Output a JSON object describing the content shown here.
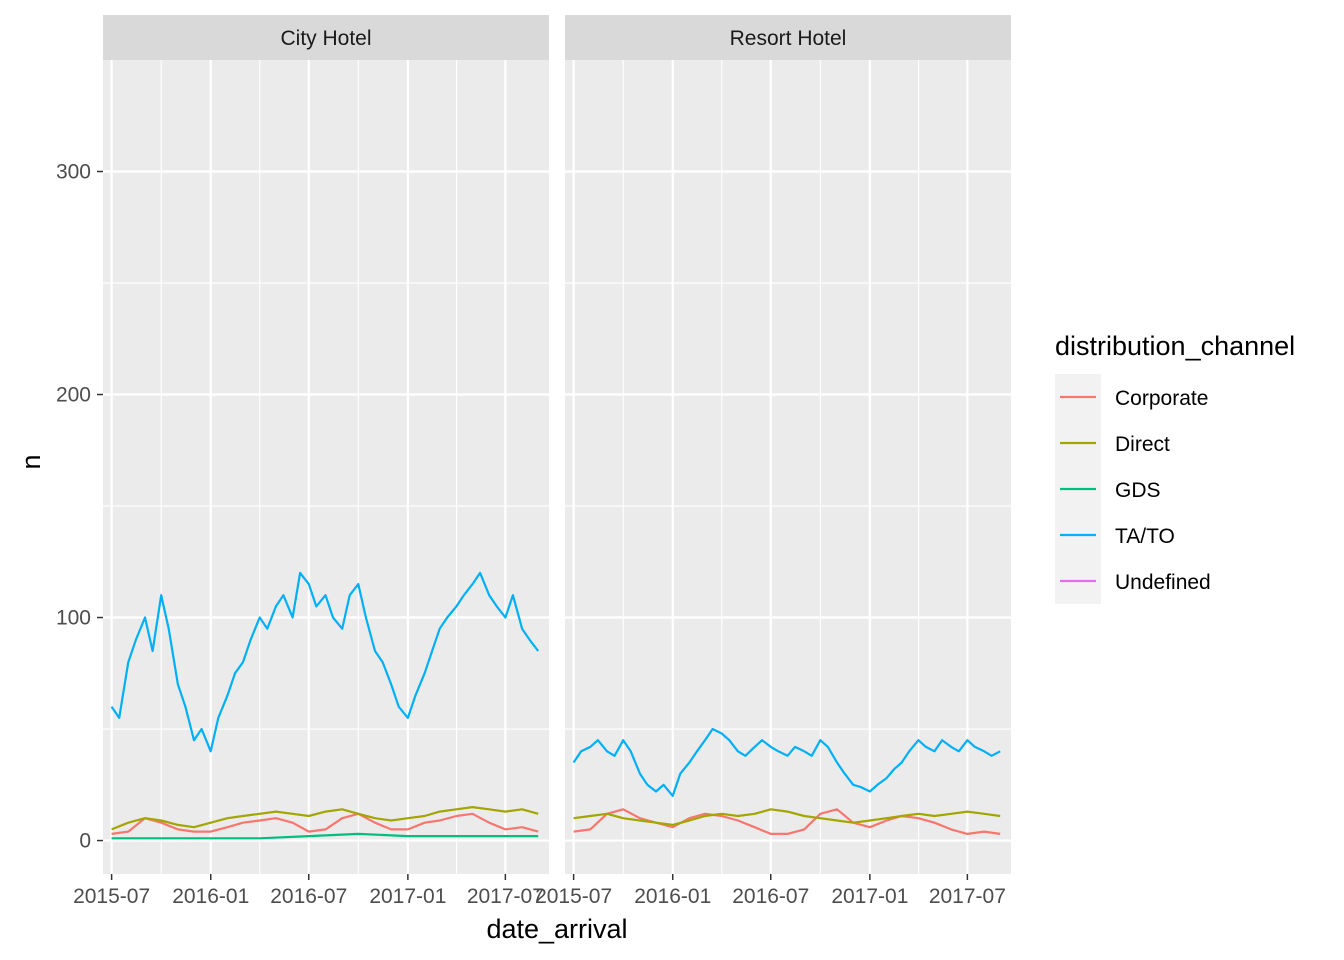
{
  "chart_data": {
    "type": "line",
    "xlabel": "date_arrival",
    "ylabel": "n",
    "ylim": [
      -15,
      350
    ],
    "xlim": [
      "2015-06-15",
      "2017-09-20"
    ],
    "y_ticks": [
      0,
      100,
      200,
      300
    ],
    "x_ticks": [
      "2015-07-01",
      "2016-01-01",
      "2016-07-01",
      "2017-01-01",
      "2017-07-01"
    ],
    "x_tick_labels": [
      "2015-07",
      "2016-01",
      "2016-07",
      "2017-01",
      "2017-07"
    ],
    "grid": true,
    "legend": {
      "title": "distribution_channel",
      "placement": "right",
      "entries": [
        "Corporate",
        "Direct",
        "GDS",
        "TA/TO",
        "Undefined"
      ]
    },
    "colors": {
      "Corporate": "#F8766D",
      "Direct": "#A3A500",
      "GDS": "#00BF7D",
      "TA/TO": "#00B0F6",
      "Undefined": "#E76BF3",
      "panel_bg": "#EBEBEB",
      "strip_bg": "#D9D9D9",
      "grid": "#FFFFFF"
    },
    "panels": [
      {
        "strip": "City Hotel",
        "series": [
          {
            "name": "Corporate",
            "x": [
              "2015-07-01",
              "2015-08-01",
              "2015-09-01",
              "2015-10-01",
              "2015-11-01",
              "2015-12-01",
              "2016-01-01",
              "2016-02-01",
              "2016-03-01",
              "2016-04-01",
              "2016-05-01",
              "2016-06-01",
              "2016-07-01",
              "2016-08-01",
              "2016-09-01",
              "2016-10-01",
              "2016-11-01",
              "2016-12-01",
              "2017-01-01",
              "2017-02-01",
              "2017-03-01",
              "2017-04-01",
              "2017-05-01",
              "2017-06-01",
              "2017-07-01",
              "2017-08-01",
              "2017-08-31"
            ],
            "y": [
              3,
              4,
              10,
              8,
              5,
              4,
              4,
              6,
              8,
              9,
              10,
              8,
              4,
              5,
              10,
              12,
              8,
              5,
              5,
              8,
              9,
              11,
              12,
              8,
              5,
              6,
              4
            ]
          },
          {
            "name": "Direct",
            "x": [
              "2015-07-01",
              "2015-08-01",
              "2015-09-01",
              "2015-10-01",
              "2015-11-01",
              "2015-12-01",
              "2016-01-01",
              "2016-02-01",
              "2016-03-01",
              "2016-04-01",
              "2016-05-01",
              "2016-06-01",
              "2016-07-01",
              "2016-08-01",
              "2016-09-01",
              "2016-10-01",
              "2016-11-01",
              "2016-12-01",
              "2017-01-01",
              "2017-02-01",
              "2017-03-01",
              "2017-04-01",
              "2017-05-01",
              "2017-06-01",
              "2017-07-01",
              "2017-08-01",
              "2017-08-31"
            ],
            "y": [
              5,
              8,
              10,
              9,
              7,
              6,
              8,
              10,
              11,
              12,
              13,
              12,
              11,
              13,
              14,
              12,
              10,
              9,
              10,
              11,
              13,
              14,
              15,
              14,
              13,
              14,
              12
            ]
          },
          {
            "name": "GDS",
            "x": [
              "2015-07-01",
              "2015-10-01",
              "2016-01-01",
              "2016-04-01",
              "2016-07-01",
              "2016-10-01",
              "2017-01-01",
              "2017-04-01",
              "2017-07-01",
              "2017-08-31"
            ],
            "y": [
              1,
              1,
              1,
              1,
              2,
              3,
              2,
              2,
              2,
              2
            ]
          },
          {
            "name": "TA/TO",
            "x": [
              "2015-07-01",
              "2015-07-15",
              "2015-08-01",
              "2015-08-15",
              "2015-09-01",
              "2015-09-15",
              "2015-10-01",
              "2015-10-15",
              "2015-11-01",
              "2015-11-15",
              "2015-12-01",
              "2015-12-15",
              "2016-01-01",
              "2016-01-15",
              "2016-02-01",
              "2016-02-15",
              "2016-03-01",
              "2016-03-15",
              "2016-04-01",
              "2016-04-15",
              "2016-05-01",
              "2016-05-15",
              "2016-06-01",
              "2016-06-15",
              "2016-07-01",
              "2016-07-15",
              "2016-08-01",
              "2016-08-15",
              "2016-09-01",
              "2016-09-15",
              "2016-10-01",
              "2016-10-15",
              "2016-11-01",
              "2016-11-15",
              "2016-12-01",
              "2016-12-15",
              "2017-01-01",
              "2017-01-15",
              "2017-02-01",
              "2017-02-15",
              "2017-03-01",
              "2017-03-15",
              "2017-04-01",
              "2017-04-15",
              "2017-05-01",
              "2017-05-15",
              "2017-06-01",
              "2017-06-15",
              "2017-07-01",
              "2017-07-15",
              "2017-08-01",
              "2017-08-15",
              "2017-08-31"
            ],
            "y": [
              60,
              55,
              80,
              90,
              100,
              85,
              110,
              95,
              70,
              60,
              45,
              50,
              40,
              55,
              65,
              75,
              80,
              90,
              100,
              95,
              105,
              110,
              100,
              120,
              115,
              105,
              110,
              100,
              95,
              110,
              115,
              100,
              85,
              80,
              70,
              60,
              55,
              65,
              75,
              85,
              95,
              100,
              105,
              110,
              115,
              120,
              110,
              105,
              100,
              110,
              95,
              90,
              85
            ]
          },
          {
            "name": "Undefined",
            "x": [],
            "y": []
          }
        ]
      },
      {
        "strip": "Resort Hotel",
        "series": [
          {
            "name": "Corporate",
            "x": [
              "2015-07-01",
              "2015-08-01",
              "2015-09-01",
              "2015-10-01",
              "2015-11-01",
              "2015-12-01",
              "2016-01-01",
              "2016-02-01",
              "2016-03-01",
              "2016-04-01",
              "2016-05-01",
              "2016-06-01",
              "2016-07-01",
              "2016-08-01",
              "2016-09-01",
              "2016-10-01",
              "2016-11-01",
              "2016-12-01",
              "2017-01-01",
              "2017-02-01",
              "2017-03-01",
              "2017-04-01",
              "2017-05-01",
              "2017-06-01",
              "2017-07-01",
              "2017-08-01",
              "2017-08-31"
            ],
            "y": [
              4,
              5,
              12,
              14,
              10,
              8,
              6,
              10,
              12,
              11,
              9,
              6,
              3,
              3,
              5,
              12,
              14,
              8,
              6,
              9,
              11,
              10,
              8,
              5,
              3,
              4,
              3
            ]
          },
          {
            "name": "Direct",
            "x": [
              "2015-07-01",
              "2015-08-01",
              "2015-09-01",
              "2015-10-01",
              "2015-11-01",
              "2015-12-01",
              "2016-01-01",
              "2016-02-01",
              "2016-03-01",
              "2016-04-01",
              "2016-05-01",
              "2016-06-01",
              "2016-07-01",
              "2016-08-01",
              "2016-09-01",
              "2016-10-01",
              "2016-11-01",
              "2016-12-01",
              "2017-01-01",
              "2017-02-01",
              "2017-03-01",
              "2017-04-01",
              "2017-05-01",
              "2017-06-01",
              "2017-07-01",
              "2017-08-01",
              "2017-08-31"
            ],
            "y": [
              10,
              11,
              12,
              10,
              9,
              8,
              7,
              9,
              11,
              12,
              11,
              12,
              14,
              13,
              11,
              10,
              9,
              8,
              9,
              10,
              11,
              12,
              11,
              12,
              13,
              12,
              11
            ]
          },
          {
            "name": "GDS",
            "x": [],
            "y": []
          },
          {
            "name": "TA/TO",
            "x": [
              "2015-07-01",
              "2015-07-15",
              "2015-08-01",
              "2015-08-15",
              "2015-09-01",
              "2015-09-15",
              "2015-10-01",
              "2015-10-15",
              "2015-11-01",
              "2015-11-15",
              "2015-12-01",
              "2015-12-15",
              "2016-01-01",
              "2016-01-15",
              "2016-02-01",
              "2016-02-15",
              "2016-03-01",
              "2016-03-15",
              "2016-04-01",
              "2016-04-15",
              "2016-05-01",
              "2016-05-15",
              "2016-06-01",
              "2016-06-15",
              "2016-07-01",
              "2016-07-15",
              "2016-08-01",
              "2016-08-15",
              "2016-09-01",
              "2016-09-15",
              "2016-10-01",
              "2016-10-15",
              "2016-11-01",
              "2016-11-15",
              "2016-12-01",
              "2016-12-15",
              "2017-01-01",
              "2017-01-15",
              "2017-02-01",
              "2017-02-15",
              "2017-03-01",
              "2017-03-15",
              "2017-04-01",
              "2017-04-15",
              "2017-05-01",
              "2017-05-15",
              "2017-06-01",
              "2017-06-15",
              "2017-07-01",
              "2017-07-15",
              "2017-08-01",
              "2017-08-15",
              "2017-08-31"
            ],
            "y": [
              35,
              40,
              42,
              45,
              40,
              38,
              45,
              40,
              30,
              25,
              22,
              25,
              20,
              30,
              35,
              40,
              45,
              50,
              48,
              45,
              40,
              38,
              42,
              45,
              42,
              40,
              38,
              42,
              40,
              38,
              45,
              42,
              35,
              30,
              25,
              24,
              22,
              25,
              28,
              32,
              35,
              40,
              45,
              42,
              40,
              45,
              42,
              40,
              45,
              42,
              40,
              38,
              40
            ]
          },
          {
            "name": "Undefined",
            "x": [],
            "y": []
          }
        ]
      }
    ]
  }
}
